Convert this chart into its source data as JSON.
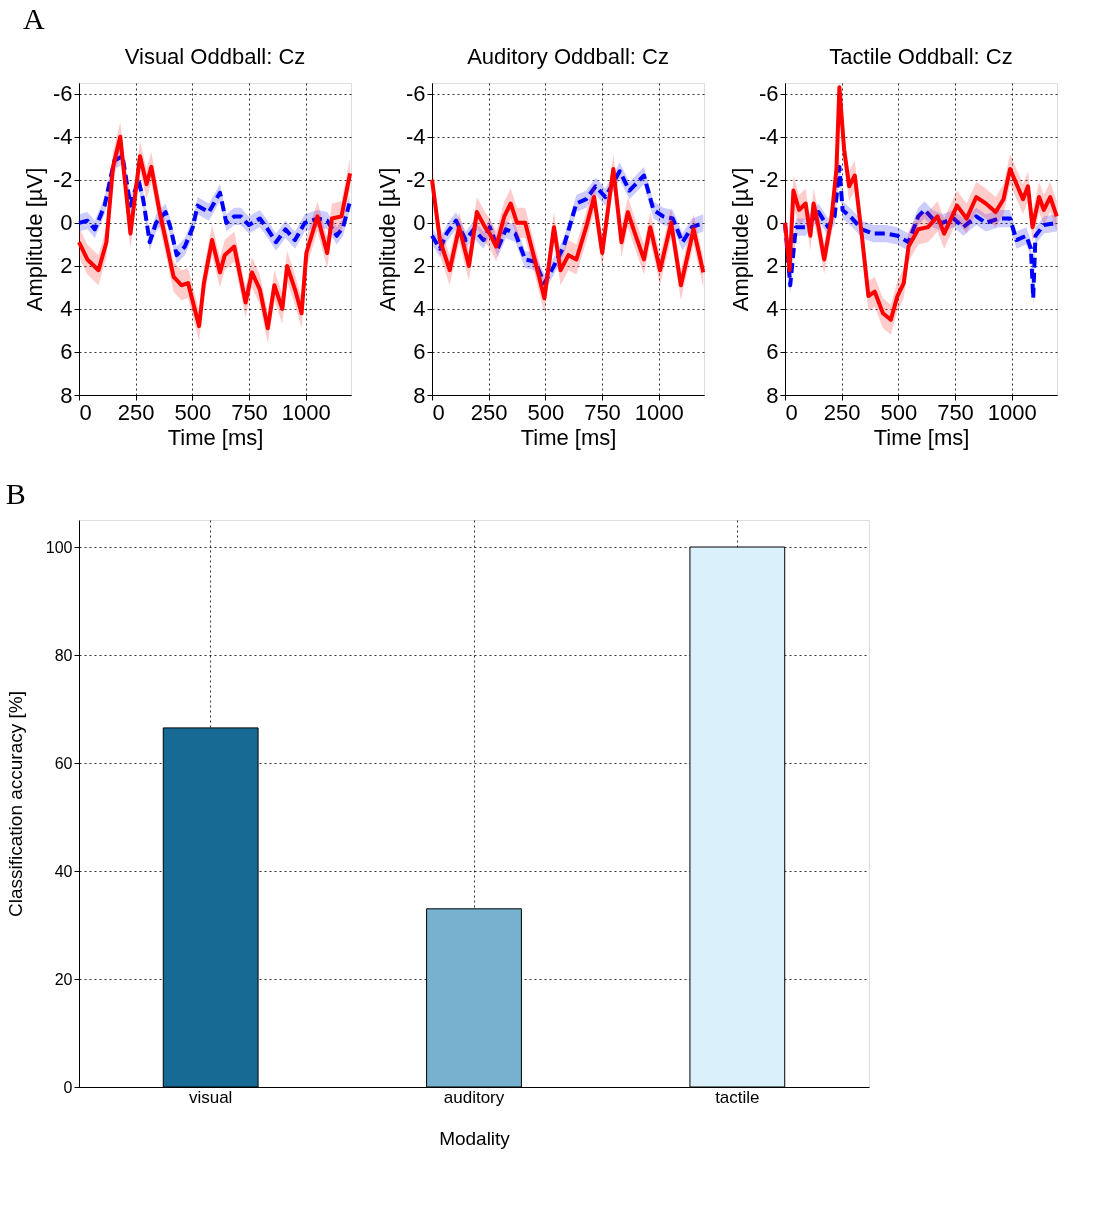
{
  "chart_data": [
    {
      "type": "line",
      "title": "Visual Oddball: Cz",
      "xlabel": "Time [ms]",
      "ylabel": "Amplitude [µV]",
      "annotations": [
        "A"
      ],
      "xlim": [
        0,
        1200
      ],
      "xticks": [
        0,
        250,
        500,
        750,
        1000
      ],
      "ylim": [
        8,
        -6.5
      ],
      "yticks": [
        -6,
        -4,
        -2,
        0,
        2,
        4,
        6,
        8
      ],
      "grid": true,
      "series": [
        {
          "color": "#0000ff",
          "line_style": "dashed",
          "x": [
            0,
            37,
            70,
            113,
            156,
            192,
            227,
            262,
            283,
            312,
            340,
            382,
            403,
            431,
            467,
            502,
            523,
            573,
            622,
            650,
            685,
            714,
            749,
            798,
            833,
            869,
            911,
            953,
            996,
            1052,
            1095,
            1137,
            1165,
            1193
          ],
          "values": [
            0,
            -0.1,
            0.3,
            -0.8,
            -2.9,
            -3.1,
            -0.8,
            -2.0,
            -1.1,
            0.9,
            0,
            -0.5,
            0.2,
            1.5,
            1.1,
            0.2,
            -0.8,
            -0.5,
            -1.4,
            0,
            -0.3,
            -0.3,
            0.1,
            -0.2,
            0.3,
            0.9,
            0.3,
            0.8,
            0,
            -0.2,
            -0.1,
            0.6,
            0.2,
            -0.9
          ],
          "lower": [
            -0.4,
            -0.5,
            -0.1,
            -1.2,
            -3.3,
            -3.5,
            -1.2,
            -2.4,
            -1.5,
            0.5,
            -0.4,
            -0.9,
            -0.2,
            1.1,
            0.7,
            -0.2,
            -1.2,
            -0.9,
            -1.8,
            -0.4,
            -0.7,
            -0.7,
            -0.3,
            -0.6,
            -0.1,
            0.5,
            -0.1,
            0.4,
            -0.4,
            -0.6,
            -0.5,
            0.2,
            -0.2,
            -1.3
          ],
          "upper": [
            0.4,
            0.3,
            0.7,
            -0.4,
            -2.5,
            -2.7,
            -0.4,
            -1.6,
            -0.7,
            1.3,
            0.4,
            -0.1,
            0.6,
            1.9,
            1.5,
            0.6,
            -0.4,
            -0.1,
            -1.0,
            0.4,
            0.1,
            0.1,
            0.5,
            0.2,
            0.7,
            1.3,
            0.7,
            1.2,
            0.4,
            0.2,
            0.3,
            1.0,
            0.6,
            -0.5
          ]
        },
        {
          "color": "#ff0000",
          "line_style": "solid",
          "x": [
            0,
            37,
            86,
            121,
            150,
            182,
            227,
            269,
            298,
            319,
            354,
            389,
            417,
            452,
            481,
            530,
            551,
            587,
            622,
            643,
            685,
            735,
            763,
            798,
            833,
            862,
            897,
            918,
            953,
            982,
            1003,
            1052,
            1095,
            1116,
            1158,
            1196
          ],
          "values": [
            0.9,
            1.7,
            2.2,
            0.9,
            -2.6,
            -4.0,
            0.5,
            -3.1,
            -1.8,
            -2.6,
            -0.6,
            1.1,
            2.5,
            2.9,
            2.8,
            4.8,
            2.8,
            0.8,
            2.3,
            1.5,
            1.1,
            3.7,
            2.3,
            3.1,
            4.9,
            2.9,
            4.0,
            2.0,
            3.1,
            4.2,
            1.4,
            -0.3,
            1.4,
            -0.2,
            -0.3,
            -2.3
          ],
          "lower": [
            0.2,
            1.0,
            1.5,
            0.2,
            -3.3,
            -4.7,
            -0.2,
            -3.8,
            -2.5,
            -3.3,
            -1.3,
            0.4,
            1.8,
            2.2,
            2.1,
            4.1,
            2.1,
            0.1,
            1.6,
            0.8,
            0.4,
            3.0,
            1.6,
            2.4,
            4.2,
            2.2,
            3.3,
            1.3,
            2.4,
            3.5,
            0.7,
            -1.0,
            0.7,
            -0.9,
            -1.0,
            -3.0
          ],
          "upper": [
            1.6,
            2.4,
            2.9,
            1.6,
            -1.9,
            -3.3,
            1.2,
            -2.4,
            -1.1,
            -1.9,
            0.1,
            1.8,
            3.2,
            3.6,
            3.5,
            5.5,
            3.5,
            1.5,
            3.0,
            2.2,
            1.8,
            4.4,
            3.0,
            3.8,
            5.6,
            3.6,
            4.7,
            2.7,
            3.8,
            4.9,
            2.1,
            0.4,
            2.1,
            0.5,
            0.4,
            -1.6
          ]
        }
      ]
    },
    {
      "type": "line",
      "title": "Auditory Oddball: Cz",
      "xlabel": "Time [ms]",
      "ylabel": "Amplitude [µV]",
      "xlim": [
        0,
        1200
      ],
      "xticks": [
        0,
        250,
        500,
        750,
        1000
      ],
      "ylim": [
        8,
        -6.5
      ],
      "yticks": [
        -6,
        -4,
        -2,
        0,
        2,
        4,
        6,
        8
      ],
      "grid": true,
      "series": [
        {
          "color": "#0000ff",
          "line_style": "dashed",
          "x": [
            0,
            35,
            64,
            106,
            149,
            184,
            227,
            255,
            290,
            326,
            368,
            411,
            453,
            496,
            538,
            581,
            637,
            680,
            722,
            765,
            828,
            871,
            935,
            977,
            1020,
            1062,
            1105,
            1147,
            1197
          ],
          "values": [
            0.6,
            1.2,
            0.5,
            -0.1,
            0.8,
            0.3,
            0.8,
            0.2,
            1.2,
            0.3,
            0.5,
            1.7,
            1.8,
            2.8,
            2.0,
            1.1,
            -0.9,
            -1.1,
            -1.7,
            -1.2,
            -2.4,
            -1.5,
            -2.2,
            -0.6,
            -0.3,
            -0.2,
            0.9,
            0.2,
            0
          ],
          "lower": [
            0.2,
            0.8,
            0.1,
            -0.5,
            0.4,
            -0.1,
            0.4,
            -0.2,
            0.8,
            -0.1,
            0.1,
            1.3,
            1.4,
            2.4,
            1.6,
            0.7,
            -1.3,
            -1.5,
            -2.1,
            -1.6,
            -2.8,
            -1.9,
            -2.6,
            -1.0,
            -0.7,
            -0.6,
            0.5,
            -0.2,
            -0.4
          ],
          "upper": [
            1.0,
            1.6,
            0.9,
            0.3,
            1.2,
            0.7,
            1.2,
            0.6,
            1.6,
            0.7,
            0.9,
            2.1,
            2.2,
            3.2,
            2.4,
            1.5,
            -0.5,
            -0.7,
            -1.3,
            -0.8,
            -2.0,
            -1.1,
            -1.8,
            -0.2,
            0.1,
            0.2,
            1.3,
            0.6,
            0.4
          ]
        },
        {
          "color": "#ff0000",
          "line_style": "solid",
          "x": [
            0,
            35,
            78,
            120,
            163,
            198,
            234,
            255,
            283,
            319,
            347,
            375,
            411,
            453,
            496,
            538,
            567,
            602,
            637,
            680,
            715,
            751,
            800,
            836,
            864,
            899,
            935,
            963,
            1006,
            1055,
            1098,
            1154,
            1197
          ],
          "values": [
            -2.0,
            0.8,
            2.2,
            0.2,
            2.0,
            -0.5,
            0.2,
            0.5,
            1.1,
            -0.3,
            -0.9,
            0,
            0,
            1.7,
            3.5,
            0.2,
            2.2,
            1.5,
            1.7,
            0.2,
            -1.2,
            1.4,
            -2.5,
            0.9,
            -0.5,
            0.6,
            1.7,
            0.2,
            2.2,
            0,
            2.9,
            0.3,
            2.3
          ],
          "lower": [
            -2.7,
            0.1,
            1.5,
            -0.5,
            1.3,
            -1.2,
            -0.5,
            -0.2,
            0.4,
            -1.0,
            -1.6,
            -0.7,
            -0.7,
            1.0,
            2.8,
            -0.5,
            1.5,
            0.8,
            1.0,
            -0.5,
            -1.9,
            0.7,
            -3.2,
            0.2,
            -1.2,
            -0.1,
            1.0,
            -0.5,
            1.5,
            -0.7,
            2.2,
            -0.4,
            1.6
          ],
          "upper": [
            -1.3,
            1.5,
            2.9,
            0.9,
            2.7,
            0.2,
            0.9,
            1.2,
            1.8,
            0.4,
            -0.2,
            0.7,
            0.7,
            2.4,
            4.2,
            0.9,
            2.9,
            2.2,
            2.4,
            0.9,
            -0.5,
            2.1,
            -1.8,
            1.6,
            0.2,
            1.3,
            2.4,
            0.9,
            2.9,
            0.7,
            3.6,
            1.0,
            3.0
          ]
        }
      ]
    },
    {
      "type": "line",
      "title": "Tactile Oddball: Cz",
      "xlabel": "Time [ms]",
      "ylabel": "Amplitude [µV]",
      "xlim": [
        0,
        1200
      ],
      "xticks": [
        0,
        250,
        500,
        750,
        1000
      ],
      "ylim": [
        8,
        -6.5
      ],
      "yticks": [
        -6,
        -4,
        -2,
        0,
        2,
        4,
        6,
        8
      ],
      "grid": true,
      "series": [
        {
          "color": "#0000ff",
          "line_style": "dashed",
          "x": [
            0,
            23,
            48,
            91,
            148,
            190,
            219,
            240,
            254,
            297,
            339,
            389,
            446,
            496,
            545,
            588,
            616,
            651,
            694,
            744,
            787,
            844,
            886,
            943,
            993,
            1021,
            1064,
            1085,
            1095,
            1105,
            1142,
            1199
          ],
          "values": [
            0,
            2.9,
            0.2,
            0.2,
            -0.5,
            0.2,
            -0.3,
            -2.6,
            -0.6,
            -0.2,
            0.3,
            0.5,
            0.5,
            0.6,
            0.9,
            -0.3,
            -0.6,
            -0.2,
            0,
            -0.2,
            0.2,
            -0.3,
            0,
            -0.2,
            -0.2,
            0.8,
            0.6,
            1.2,
            3.5,
            0.6,
            0.1,
            0
          ],
          "lower": [
            -0.4,
            2.5,
            -0.2,
            -0.2,
            -0.9,
            -0.2,
            -0.7,
            -3.0,
            -1.0,
            -0.6,
            -0.1,
            0.1,
            0.1,
            0.2,
            0.5,
            -0.7,
            -1.0,
            -0.6,
            -0.4,
            -0.6,
            -0.2,
            -0.7,
            -0.4,
            -0.6,
            -0.6,
            0.4,
            0.2,
            0.8,
            3.1,
            0.2,
            -0.3,
            -0.4
          ],
          "upper": [
            0.4,
            3.3,
            0.6,
            0.6,
            -0.1,
            0.6,
            0.1,
            -2.2,
            -0.2,
            0.2,
            0.7,
            0.9,
            0.9,
            1.0,
            1.3,
            0.1,
            -0.2,
            0.2,
            0.4,
            0.2,
            0.6,
            0.1,
            0.4,
            0.2,
            0.2,
            1.2,
            1.0,
            1.6,
            3.9,
            1.0,
            0.5,
            0.4
          ]
        },
        {
          "color": "#ff0000",
          "line_style": "solid",
          "x": [
            0,
            20,
            37,
            62,
            91,
            112,
            126,
            148,
            173,
            205,
            227,
            240,
            261,
            283,
            308,
            339,
            368,
            396,
            432,
            467,
            496,
            524,
            545,
            588,
            631,
            673,
            702,
            759,
            801,
            844,
            886,
            929,
            964,
            993,
            1050,
            1072,
            1092,
            1121,
            1142,
            1170,
            1199
          ],
          "values": [
            0,
            2.2,
            -1.5,
            -0.6,
            -0.9,
            0.6,
            -0.9,
            0.2,
            1.7,
            -0.2,
            -2.5,
            -6.3,
            -3.4,
            -1.7,
            -2.2,
            0.6,
            3.4,
            3.2,
            4.2,
            4.5,
            3.4,
            2.8,
            1.1,
            0.3,
            0.2,
            -0.3,
            0.5,
            -0.8,
            -0.2,
            -1.2,
            -0.9,
            -0.5,
            -1.1,
            -2.5,
            -1.1,
            -1.7,
            0.2,
            -1.2,
            -0.6,
            -1.2,
            -0.3
          ],
          "lower": [
            -0.7,
            1.5,
            -2.2,
            -1.3,
            -1.6,
            -0.1,
            -1.6,
            -0.5,
            1.0,
            -0.9,
            -3.2,
            -6.5,
            -4.1,
            -2.4,
            -2.9,
            -0.1,
            2.7,
            2.5,
            3.5,
            3.8,
            2.7,
            2.1,
            0.4,
            -0.4,
            -0.5,
            -1.0,
            -0.2,
            -1.5,
            -0.9,
            -1.9,
            -1.6,
            -1.2,
            -1.8,
            -3.2,
            -1.8,
            -2.4,
            -0.5,
            -1.9,
            -1.3,
            -1.9,
            -1.0
          ],
          "upper": [
            0.7,
            2.9,
            -0.8,
            0.1,
            -0.2,
            1.3,
            -0.2,
            0.9,
            2.4,
            0.5,
            -1.8,
            -5.6,
            -2.7,
            -1.0,
            -1.5,
            1.3,
            4.1,
            3.9,
            4.9,
            5.2,
            4.1,
            3.5,
            1.8,
            1.0,
            0.9,
            0.4,
            1.2,
            -0.1,
            0.5,
            -0.5,
            -0.2,
            0.2,
            -0.4,
            -1.8,
            -0.4,
            -1.0,
            0.9,
            -0.5,
            0.1,
            -0.5,
            0.4
          ]
        }
      ]
    },
    {
      "type": "bar",
      "xlabel": "Modality",
      "ylabel": "Classification accuracy [%]",
      "annotations": [
        "B"
      ],
      "categories": [
        "visual",
        "auditory",
        "tactile"
      ],
      "values": [
        66.5,
        33,
        100
      ],
      "colors": [
        "#176a94",
        "#76b2cf",
        "#daf0fb"
      ],
      "ylim": [
        0,
        105
      ],
      "yticks": [
        0,
        20,
        40,
        60,
        80,
        100
      ],
      "grid": true
    }
  ]
}
